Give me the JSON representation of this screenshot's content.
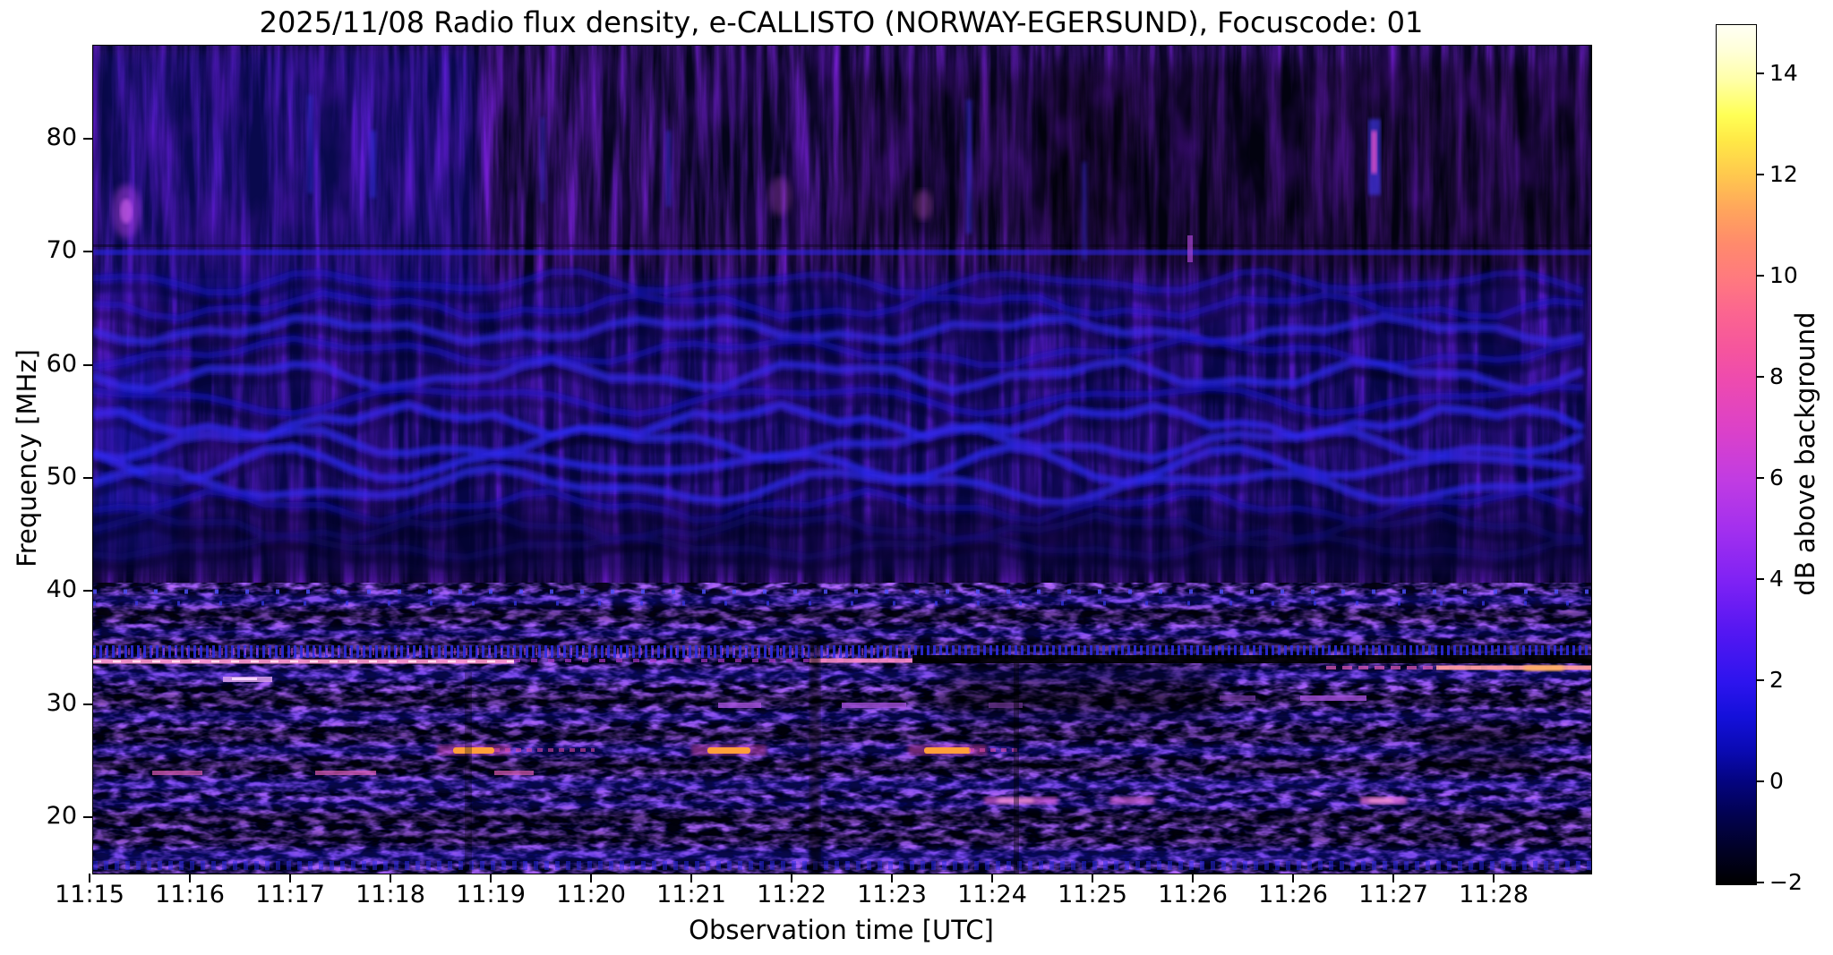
{
  "title": "2025/11/08  Radio flux density, e-CALLISTO (NORWAY-EGERSUND), Focuscode: 01",
  "xlabel": "Observation time [UTC]",
  "ylabel": "Frequency [MHz]",
  "x_ticks": [
    "11:15",
    "11:16",
    "11:17",
    "11:18",
    "11:19",
    "11:20",
    "11:21",
    "11:22",
    "11:23",
    "11:24",
    "11:25",
    "11:26",
    "11:26",
    "11:27",
    "11:28"
  ],
  "y_ticks": [
    80,
    70,
    60,
    50,
    40,
    30,
    20
  ],
  "colorbar": {
    "label": "dB above background",
    "ticks": [
      {
        "v": 14,
        "label": "14"
      },
      {
        "v": 12,
        "label": "12"
      },
      {
        "v": 10,
        "label": "10"
      },
      {
        "v": 8,
        "label": "8"
      },
      {
        "v": 6,
        "label": "6"
      },
      {
        "v": 4,
        "label": "4"
      },
      {
        "v": 2,
        "label": "2"
      },
      {
        "v": 0,
        "label": "0"
      },
      {
        "v": -2,
        "label": "−2"
      }
    ],
    "min": -2,
    "max": 15
  },
  "chart_data": {
    "type": "heatmap",
    "subtype": "solar radio spectrogram (dynamic spectrum)",
    "title": "2025/11/08  Radio flux density, e-CALLISTO (NORWAY-EGERSUND), Focuscode: 01",
    "date": "2025/11/08",
    "station": "NORWAY-EGERSUND",
    "focuscode": "01",
    "xlabel": "Observation time [UTC]",
    "ylabel": "Frequency [MHz]",
    "zlabel": "dB above background",
    "x_tick_labels": [
      "11:15",
      "11:16",
      "11:17",
      "11:18",
      "11:19",
      "11:20",
      "11:21",
      "11:22",
      "11:23",
      "11:24",
      "11:25",
      "11:26",
      "11:26",
      "11:27",
      "11:28"
    ],
    "x_range": [
      "11:15",
      "11:30"
    ],
    "y_tick_values": [
      20,
      30,
      40,
      50,
      60,
      70,
      80
    ],
    "y_range_mhz": [
      15,
      88
    ],
    "z_tick_values": [
      -2,
      0,
      2,
      4,
      6,
      8,
      10,
      12,
      14
    ],
    "z_range_db": [
      -2,
      15
    ],
    "colormap_stops": [
      "#000000",
      "#02024e",
      "#04047e",
      "#1410da",
      "#2d14ee",
      "#5517f2",
      "#7f22f4",
      "#a430ee",
      "#c13ce2",
      "#dc41c8",
      "#ee4bae",
      "#f5549e",
      "#ff7a7e",
      "#ffa55c",
      "#ffc84e",
      "#ffff55",
      "#fffff4"
    ],
    "legend_position": "right colorbar",
    "grid": false,
    "background_texture": "dark navy with vertical blue interference streaks; speckled noisy band below 40 MHz",
    "features": [
      {
        "kind": "enhanced-horizontal-band",
        "freq_mhz": 70,
        "time": "11:15-11:30",
        "intensity_db": 2
      },
      {
        "kind": "ionospheric-wavy-fringes",
        "freq_range_mhz": [
          44,
          68
        ],
        "time": "11:15-11:30",
        "intensity_db": 2
      },
      {
        "kind": "speckle-band",
        "freq_range_mhz": [
          37,
          41
        ],
        "time": "11:15-11:30",
        "intensity_db": 2
      },
      {
        "kind": "rfi-line-bright",
        "freq_mhz": 34.0,
        "time": "11:15-11:19.5",
        "intensity_db": 7
      },
      {
        "kind": "rfi-line-medium",
        "freq_mhz": 34.0,
        "time": "11:19.5-11:22.2",
        "intensity_db": 4
      },
      {
        "kind": "rfi-line-bright",
        "freq_mhz": 34.0,
        "time": "11:22.2-11:23.3",
        "intensity_db": 7
      },
      {
        "kind": "rfi-line-black-gap",
        "freq_mhz": 34.2,
        "time": "11:23.3-11:30",
        "intensity_db": -2
      },
      {
        "kind": "rfi-line-bright",
        "freq_mhz": 33.4,
        "time": "11:26.5-11:30",
        "intensity_db": 8
      },
      {
        "kind": "burst-orange",
        "freq_mhz": 26,
        "time": "11:19.4",
        "intensity_db": 12
      },
      {
        "kind": "burst-orange",
        "freq_mhz": 26,
        "time": "11:21.3",
        "intensity_db": 12
      },
      {
        "kind": "burst-orange",
        "freq_mhz": 26,
        "time": "11:23.6",
        "intensity_db": 12
      },
      {
        "kind": "blob-magenta",
        "freq_mhz": 21.5,
        "time": "11:24.0-11:24.7",
        "intensity_db": 7
      },
      {
        "kind": "blob-magenta",
        "freq_mhz": 21.5,
        "time": "11:25.2",
        "intensity_db": 7
      },
      {
        "kind": "blob-magenta",
        "freq_mhz": 21.5,
        "time": "11:27.8",
        "intensity_db": 7
      },
      {
        "kind": "dash-pink",
        "freq_mhz": 24,
        "time": "11:15.6 / 11:17.2 / 11:19.0",
        "intensity_db": 6
      },
      {
        "kind": "dash-violet",
        "freq_mhz": 30,
        "time": "11:21.3 / 11:22.5 / 11:24.0 / 11:26.2",
        "intensity_db": 5
      },
      {
        "kind": "segment-violet-white",
        "freq_mhz": 32.5,
        "time": "11:16.3-11:16.7",
        "intensity_db": 8
      },
      {
        "kind": "streak-magenta",
        "freq_mhz": 80,
        "time": "11:27.7",
        "intensity_db": 8
      },
      {
        "kind": "blob-violet",
        "freq_mhz": 74,
        "time": "11:15.3",
        "intensity_db": 6
      },
      {
        "kind": "blob-pink-faint",
        "freq_mhz": 74,
        "time": "11:22.0",
        "intensity_db": 4
      },
      {
        "kind": "blob-pink-faint",
        "freq_mhz": 73,
        "time": "11:23.3",
        "intensity_db": 4
      },
      {
        "kind": "dash-violet",
        "freq_mhz": 69,
        "time": "11:26.0",
        "intensity_db": 5
      },
      {
        "kind": "dark-vertical-gap",
        "freq_range_mhz": [
          15,
          35
        ],
        "time": "11:22.2",
        "intensity_db": -2
      },
      {
        "kind": "dark-patch",
        "freq_range_mhz": [
          30,
          33
        ],
        "time": "11:23.5-11:26",
        "intensity_db": -1
      },
      {
        "kind": "noisy-speckle-region",
        "freq_range_mhz": [
          15,
          33
        ],
        "time": "11:15-11:30",
        "intensity_db": "0-4, horizontal banding"
      }
    ],
    "fringes": [
      {
        "f": 67.4,
        "amp": 1.0,
        "op": 0.55,
        "bright": false
      },
      {
        "f": 65.3,
        "amp": 1.1,
        "op": 0.6,
        "bright": false
      },
      {
        "f": 63.2,
        "amp": 1.1,
        "op": 0.65,
        "bright": true
      },
      {
        "f": 61.2,
        "amp": 1.2,
        "op": 0.6,
        "bright": false
      },
      {
        "f": 59.2,
        "amp": 1.3,
        "op": 0.7,
        "bright": true
      },
      {
        "f": 57.1,
        "amp": 1.3,
        "op": 0.65,
        "bright": false
      },
      {
        "f": 55.1,
        "amp": 1.4,
        "op": 0.75,
        "bright": true
      },
      {
        "f": 53.2,
        "amp": 1.4,
        "op": 0.7,
        "bright": true
      },
      {
        "f": 51.3,
        "amp": 1.5,
        "op": 0.75,
        "bright": true
      },
      {
        "f": 49.4,
        "amp": 1.5,
        "op": 0.7,
        "bright": true
      },
      {
        "f": 47.6,
        "amp": 1.3,
        "op": 0.6,
        "bright": false
      },
      {
        "f": 45.7,
        "amp": 1.1,
        "op": 0.45,
        "bright": false
      },
      {
        "f": 44.0,
        "amp": 0.9,
        "op": 0.35,
        "bright": false
      }
    ]
  }
}
